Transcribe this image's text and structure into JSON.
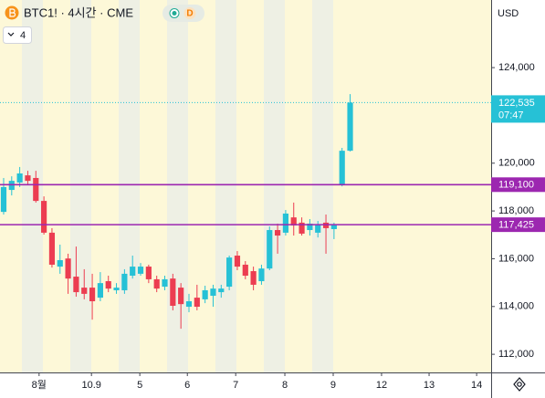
{
  "header": {
    "title": "BTC1! · 4시간 · CME",
    "badge": "D",
    "indicator_count": "4",
    "currency": "USD"
  },
  "chart_data": {
    "type": "candlestick",
    "x": [
      0,
      1,
      2,
      3,
      4,
      5,
      6,
      7,
      8,
      9,
      10,
      11,
      12,
      13,
      14,
      15,
      16,
      17,
      18,
      19,
      20,
      21,
      22,
      23,
      24,
      25,
      26,
      27,
      28,
      29,
      30,
      31,
      32,
      33,
      34,
      35,
      36,
      37,
      38,
      39,
      40,
      41,
      42,
      43
    ],
    "open": [
      117960,
      118880,
      119190,
      119490,
      119380,
      118420,
      117090,
      115670,
      116010,
      115250,
      114790,
      114790,
      114370,
      115060,
      114680,
      114680,
      115290,
      115370,
      115670,
      115140,
      114830,
      115170,
      114790,
      113990,
      114370,
      114300,
      114450,
      114600,
      114830,
      116130,
      115750,
      115480,
      115060,
      115590,
      117200,
      117090,
      117730,
      117510,
      117200,
      117090,
      117510,
      117240,
      119110,
      120520
    ],
    "high": [
      119380,
      119450,
      119840,
      119680,
      119680,
      118610,
      117280,
      116590,
      116210,
      116510,
      115560,
      115370,
      115440,
      115290,
      114980,
      115560,
      116130,
      115820,
      115750,
      115290,
      115290,
      115370,
      114980,
      114530,
      114910,
      114870,
      114910,
      114910,
      116130,
      116320,
      115900,
      115670,
      115750,
      117350,
      117470,
      118040,
      118350,
      117730,
      117660,
      117580,
      117850,
      117510,
      120640,
      122890
    ],
    "low": [
      117850,
      118650,
      119000,
      119110,
      118350,
      117010,
      115630,
      115370,
      114530,
      114410,
      114300,
      113450,
      114220,
      114600,
      114530,
      114530,
      115170,
      115290,
      114980,
      114600,
      114680,
      113840,
      113070,
      113760,
      113840,
      114140,
      113990,
      114370,
      114680,
      115520,
      115140,
      114680,
      114910,
      115520,
      116210,
      116970,
      116970,
      116970,
      116970,
      116890,
      116210,
      116820,
      119030,
      120490
    ],
    "close": [
      119000,
      119260,
      119570,
      119260,
      118420,
      117090,
      115750,
      115940,
      115170,
      114600,
      114530,
      114220,
      114980,
      114750,
      114790,
      115370,
      115670,
      115670,
      115140,
      114750,
      115140,
      114030,
      114100,
      114220,
      113990,
      114680,
      114750,
      114750,
      116050,
      115670,
      115290,
      114910,
      115590,
      117200,
      116970,
      117890,
      117390,
      117050,
      117470,
      117430,
      117280,
      117430,
      120520,
      122535
    ],
    "up_color": "#26c1d6",
    "down_color": "#ec3d51",
    "xlim": [
      -0.45,
      60.5
    ],
    "ylim": [
      111240,
      126830
    ],
    "xticks": [
      {
        "value": 4.4,
        "label": "8월"
      },
      10.9,
      {
        "value": 16.9,
        "label": "5"
      },
      {
        "value": 22.8,
        "label": "6"
      },
      {
        "value": 28.8,
        "label": "7"
      },
      {
        "value": 34.9,
        "label": "8"
      },
      {
        "value": 40.9,
        "label": "9"
      },
      {
        "value": 46.9,
        "label": "12"
      },
      {
        "value": 52.8,
        "label": "13"
      },
      {
        "value": 58.7,
        "label": "14"
      }
    ],
    "yticks": [
      {
        "value": 112000,
        "label": "112,000"
      },
      {
        "value": 114000,
        "label": "114,000"
      },
      {
        "value": 116000,
        "label": "116,000"
      },
      {
        "value": 118000,
        "label": "118,000"
      },
      {
        "value": 120000,
        "label": "120,000"
      },
      {
        "value": 124000,
        "label": "124,000"
      }
    ],
    "levels": [
      {
        "value": 119100,
        "label": "119,100",
        "color": "#9c27b0"
      },
      {
        "value": 117425,
        "label": "117,425",
        "color": "#9c27b0"
      }
    ],
    "last_price": {
      "value": 122535,
      "label": "122,535",
      "countdown": "07:47",
      "color": "#26c1d6"
    }
  }
}
